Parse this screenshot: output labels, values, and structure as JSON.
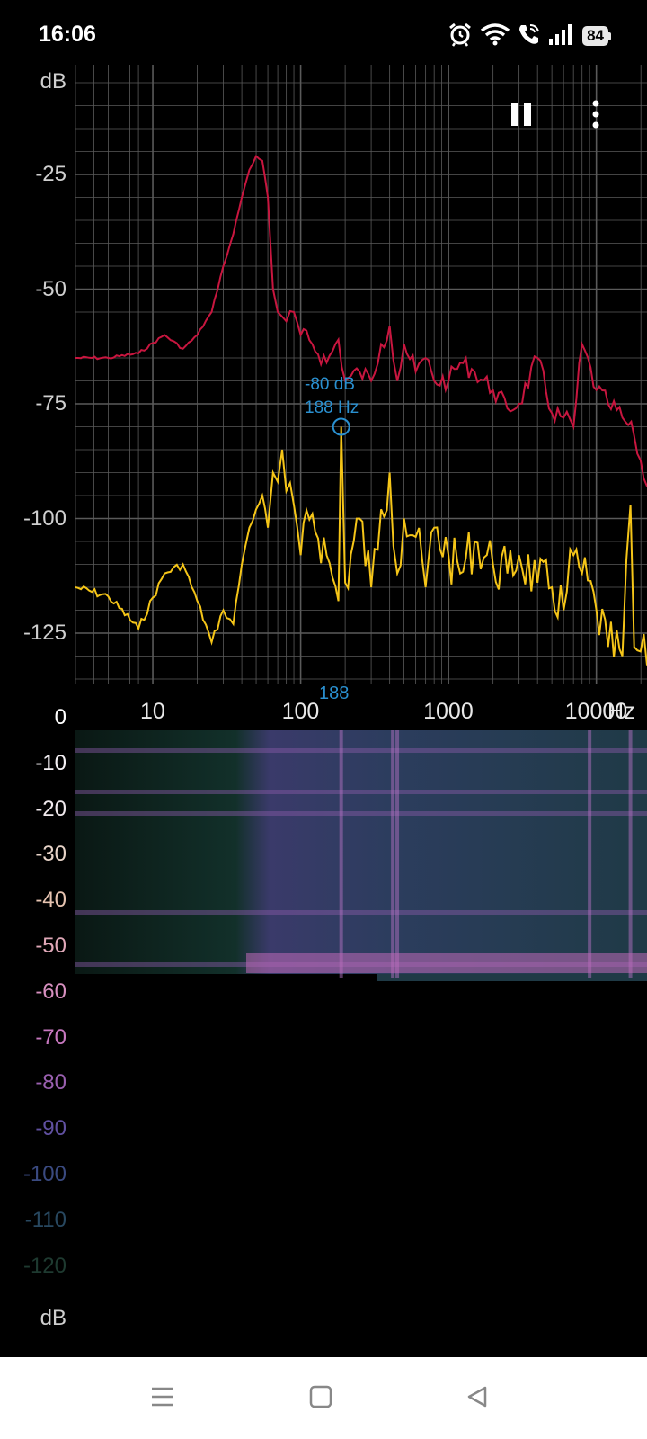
{
  "status_bar": {
    "time": "16:06",
    "battery_level": "84",
    "icons": [
      "alarm-icon",
      "wifi-icon",
      "wifi-call-icon",
      "signal-icon",
      "battery-icon"
    ]
  },
  "colors": {
    "background": "#000000",
    "grid": "#5a5a5a",
    "peak_trace": "#c8163f",
    "current_trace": "#f5c518",
    "cursor": "#2a90d0",
    "axis_text": "#cfcfcf"
  },
  "fft": {
    "y_unit": "dB",
    "x_unit": "Hz",
    "y_ticks": [
      "-25",
      "-50",
      "-75",
      "-100",
      "-125"
    ],
    "x_ticks": [
      "10",
      "100",
      "1000",
      "10000"
    ],
    "cursor": {
      "db_text": "-80 dB",
      "hz_text": "188 Hz",
      "axis_marker": "188",
      "freq": 188,
      "db": -80
    }
  },
  "spectrogram": {
    "y_unit": "dB",
    "y_ticks": [
      "0",
      "-10",
      "-20",
      "-30",
      "-40",
      "-50",
      "-60",
      "-70",
      "-80",
      "-90",
      "-100",
      "-110",
      "-120"
    ],
    "y_tick_colors": [
      "#ffffff",
      "#f4f0f4",
      "#efe8ec",
      "#e8d4c8",
      "#e6c3b0",
      "#e0a8b8",
      "#d890c0",
      "#c878c0",
      "#9a60b0",
      "#6050a0",
      "#3a4a80",
      "#284860",
      "#1e3a30"
    ]
  },
  "toolbar": {
    "pause": "pause-icon",
    "menu": "more-vert-icon"
  },
  "nav_bar": {
    "icons": [
      "menu-icon",
      "home-icon",
      "back-icon"
    ]
  },
  "chart_data": {
    "type": "line",
    "xlabel": "Hz",
    "ylabel": "dB",
    "x_scale": "log",
    "xlim": [
      3,
      22000
    ],
    "ylim": [
      -135,
      0
    ],
    "grid": true,
    "series": [
      {
        "x": [
          3,
          5,
          8,
          12,
          16,
          20,
          25,
          30,
          35,
          40,
          45,
          50,
          55,
          60,
          65,
          70,
          75,
          80,
          90,
          100,
          120,
          150,
          180,
          200,
          250,
          300,
          350,
          400,
          450,
          500,
          600,
          700,
          800,
          1000,
          1200,
          1500,
          2000,
          2500,
          3000,
          4000,
          5000,
          6000,
          7000,
          8000,
          10000,
          12000,
          15000,
          18000,
          22000
        ],
        "y": [
          -65,
          -65,
          -64,
          -60,
          -63,
          -60,
          -55,
          -45,
          -38,
          -30,
          -24,
          -21,
          -22,
          -30,
          -50,
          -55,
          -56,
          -57,
          -55,
          -60,
          -62,
          -66,
          -61,
          -70,
          -68,
          -70,
          -62,
          -58,
          -70,
          -62,
          -68,
          -65,
          -70,
          -70,
          -66,
          -68,
          -72,
          -76,
          -75,
          -65,
          -77,
          -78,
          -80,
          -62,
          -72,
          -75,
          -78,
          -82,
          -93
        ]
      },
      {
        "x": [
          3,
          5,
          8,
          12,
          16,
          20,
          25,
          30,
          35,
          40,
          45,
          50,
          55,
          60,
          65,
          70,
          75,
          80,
          90,
          100,
          120,
          150,
          180,
          188,
          200,
          250,
          300,
          350,
          400,
          450,
          500,
          600,
          700,
          800,
          1000,
          1200,
          1500,
          2000,
          2500,
          3000,
          4000,
          5000,
          6000,
          7000,
          8000,
          10000,
          12000,
          15000,
          17000,
          18000,
          22000
        ],
        "y": [
          -115,
          -117,
          -124,
          -112,
          -110,
          -118,
          -127,
          -120,
          -123,
          -110,
          -102,
          -98,
          -95,
          -102,
          -90,
          -92,
          -85,
          -94,
          -97,
          -108,
          -99,
          -108,
          -118,
          -80,
          -114,
          -100,
          -115,
          -98,
          -90,
          -112,
          -100,
          -104,
          -115,
          -102,
          -108,
          -112,
          -105,
          -110,
          -112,
          -108,
          -114,
          -115,
          -120,
          -108,
          -112,
          -120,
          -128,
          -130,
          -97,
          -128,
          -132
        ]
      }
    ]
  }
}
